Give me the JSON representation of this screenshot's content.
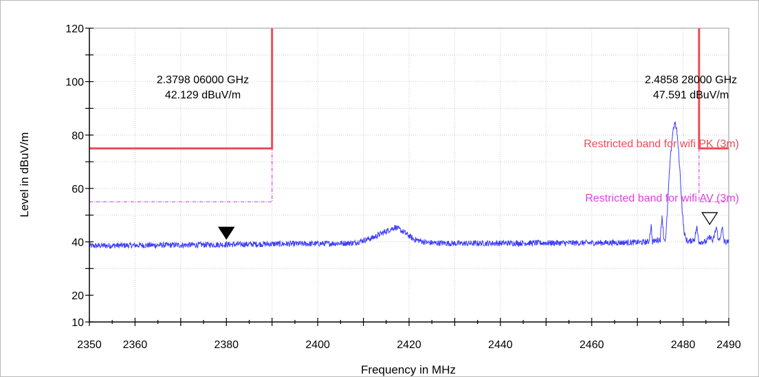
{
  "chart_data": {
    "type": "line",
    "xlabel": "Frequency in MHz",
    "ylabel": "Level in dBuV/m",
    "xlim": [
      2350,
      2490
    ],
    "ylim": [
      10,
      120
    ],
    "x_ticks": [
      2350,
      2360,
      2380,
      2400,
      2420,
      2440,
      2460,
      2480,
      2490
    ],
    "y_ticks": [
      10,
      20,
      40,
      60,
      80,
      100,
      120
    ],
    "grid": true,
    "series": [
      {
        "color": "#3b3bff",
        "points": [
          [
            2350,
            38.5
          ],
          [
            2360,
            38.7
          ],
          [
            2370,
            38.8
          ],
          [
            2380,
            39.0
          ],
          [
            2390,
            39.2
          ],
          [
            2400,
            39.3
          ],
          [
            2408,
            39.6
          ],
          [
            2412,
            41.5
          ],
          [
            2415,
            44.0
          ],
          [
            2417,
            45.5
          ],
          [
            2419,
            43.5
          ],
          [
            2421,
            41.0
          ],
          [
            2424,
            39.7
          ],
          [
            2430,
            39.4
          ],
          [
            2440,
            39.5
          ],
          [
            2450,
            39.6
          ],
          [
            2460,
            39.6
          ],
          [
            2470,
            39.8
          ],
          [
            2472.5,
            40.0
          ],
          [
            2473,
            46.0
          ],
          [
            2473.3,
            40.0
          ],
          [
            2474,
            40.5
          ],
          [
            2475,
            41.0
          ],
          [
            2475.4,
            50.0
          ],
          [
            2475.8,
            41.0
          ],
          [
            2476.2,
            41.0
          ],
          [
            2476.6,
            53.0
          ],
          [
            2477,
            66.0
          ],
          [
            2477.4,
            75.0
          ],
          [
            2477.8,
            82.0
          ],
          [
            2478.2,
            84.5
          ],
          [
            2478.6,
            82.0
          ],
          [
            2479,
            74.0
          ],
          [
            2479.4,
            64.0
          ],
          [
            2479.8,
            52.0
          ],
          [
            2480.2,
            44.0
          ],
          [
            2480.6,
            41.0
          ],
          [
            2481.2,
            40.0
          ],
          [
            2482.5,
            41.0
          ],
          [
            2483,
            45.5
          ],
          [
            2483.5,
            40.0
          ],
          [
            2485,
            40.0
          ],
          [
            2486,
            42.0
          ],
          [
            2486.5,
            40.0
          ],
          [
            2487.3,
            45.5
          ],
          [
            2487.8,
            40.0
          ],
          [
            2488.6,
            45.0
          ],
          [
            2489,
            40.0
          ],
          [
            2490,
            39.8
          ]
        ]
      }
    ],
    "limits": [
      {
        "name": "Restricted band for wifi PK (3m)",
        "color": "#ee4a55",
        "segments": [
          [
            2350,
            75
          ],
          [
            2390,
            75
          ],
          [
            2390,
            120
          ],
          null,
          [
            2483.5,
            120
          ],
          [
            2483.5,
            75
          ],
          [
            2490,
            75
          ]
        ]
      },
      {
        "name": "Restricted band for wifi AV (3m)",
        "color": "#e040e0",
        "segments": [
          [
            2350,
            55
          ],
          [
            2390,
            55
          ],
          [
            2390,
            75
          ],
          null,
          [
            2483.5,
            75
          ],
          [
            2483.5,
            55
          ],
          [
            2490,
            55
          ]
        ]
      }
    ],
    "markers": [
      {
        "x": 2380,
        "y": 42.129,
        "style": "filled",
        "label_freq": "2.3798 06000 GHz",
        "label_level": "42.129 dBuV/m"
      },
      {
        "x": 2485.828,
        "y": 47.591,
        "style": "hollow",
        "label_freq": "2.4858 28000 GHz",
        "label_level": "47.591 dBuV/m"
      }
    ]
  }
}
